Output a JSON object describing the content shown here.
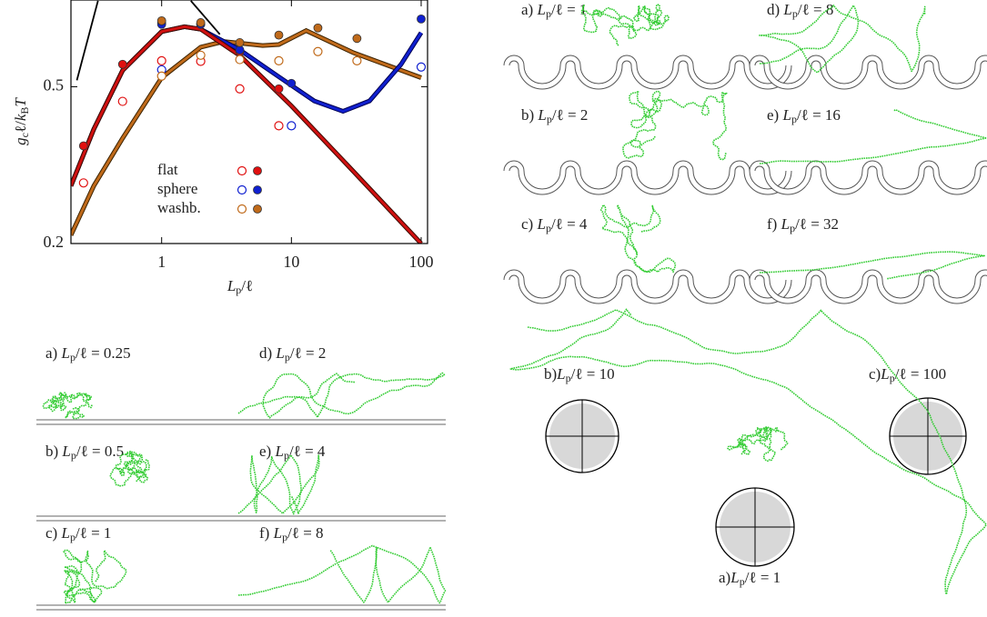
{
  "chart_data": {
    "type": "scatter",
    "xlabel": "L_p/ℓ",
    "ylabel": "g_cℓ/k_BT",
    "xscale": "log",
    "yscale": "log",
    "xlim": [
      0.2,
      112
    ],
    "ylim": [
      0.2,
      0.83
    ],
    "xticks": [
      1,
      10,
      100
    ],
    "yticks": [
      0.2,
      0.5
    ],
    "series": [
      {
        "name": "flat",
        "color": "#e01010",
        "open": {
          "x": [
            0.25,
            0.5,
            1,
            2,
            4,
            8
          ],
          "values": [
            0.285,
            0.459,
            0.582,
            0.58,
            0.494,
            0.398
          ]
        },
        "filled": {
          "x": [
            0.25,
            0.5,
            1,
            2,
            4,
            8
          ],
          "values": [
            0.354,
            0.57,
            0.727,
            0.72,
            0.614,
            0.494
          ]
        }
      },
      {
        "name": "sphere",
        "color": "#1020d0",
        "open": {
          "x": [
            1,
            10,
            100
          ],
          "values": [
            0.552,
            0.398,
            0.561
          ]
        },
        "filled": {
          "x": [
            1,
            2,
            4,
            10,
            100
          ],
          "values": [
            0.72,
            0.72,
            0.62,
            0.51,
            0.743
          ]
        }
      },
      {
        "name": "washb.",
        "color": "#c06a1a",
        "open": {
          "x": [
            1,
            2,
            4,
            8,
            16,
            32
          ],
          "values": [
            0.532,
            0.601,
            0.586,
            0.582,
            0.614,
            0.582
          ]
        },
        "filled": {
          "x": [
            1,
            2,
            4,
            8,
            16,
            32
          ],
          "values": [
            0.735,
            0.727,
            0.647,
            0.676,
            0.705,
            0.663
          ]
        }
      }
    ],
    "curves": [
      {
        "color": "#c06a1a",
        "outline": "#3a2200",
        "x": [
          0.2,
          0.3,
          0.5,
          1,
          2,
          3,
          6,
          8,
          13,
          30,
          100
        ],
        "values": [
          0.21,
          0.28,
          0.37,
          0.527,
          0.63,
          0.651,
          0.636,
          0.64,
          0.694,
          0.61,
          0.527
        ]
      },
      {
        "color": "#1020d0",
        "outline": "#000050",
        "x": [
          0.2,
          0.3,
          0.5,
          1,
          1.5,
          2,
          4,
          8,
          15,
          25,
          40,
          70,
          100
        ],
        "values": [
          0.28,
          0.39,
          0.55,
          0.69,
          0.71,
          0.7,
          0.62,
          0.53,
          0.46,
          0.433,
          0.46,
          0.57,
          0.686
        ]
      },
      {
        "color": "#d01010",
        "outline": "#3a0a00",
        "x": [
          0.2,
          0.3,
          0.5,
          1,
          1.5,
          2,
          4,
          10,
          30,
          100
        ],
        "values": [
          0.28,
          0.39,
          0.55,
          0.69,
          0.71,
          0.7,
          0.6,
          0.447,
          0.305,
          0.2
        ]
      },
      {
        "color": "#000000",
        "x": [
          0.222,
          0.323
        ],
        "values": [
          0.519,
          0.826
        ]
      },
      {
        "color": "#000000",
        "x": [
          1.68,
          2.81
        ],
        "values": [
          0.826,
          0.679
        ]
      }
    ]
  },
  "figures": {
    "washboard": {
      "labels": [
        "a) L_p/ℓ = 1",
        "b) L_p/ℓ = 2",
        "c) L_p/ℓ = 4",
        "d) L_p/ℓ = 8",
        "e) L_p/ℓ = 16",
        "f) L_p/ℓ = 32"
      ]
    },
    "flat": {
      "labels": [
        "a) L_p/ℓ = 0.25",
        "b) L_p/ℓ = 0.5",
        "c) L_p/ℓ = 1",
        "d) L_p/ℓ = 2",
        "e) L_p/ℓ = 4",
        "f) L_p/ℓ = 8"
      ]
    },
    "spheres": {
      "labels": [
        "a)L_p/ℓ = 1",
        "b)L_p/ℓ = 10",
        "c)L_p/ℓ = 100"
      ]
    }
  }
}
